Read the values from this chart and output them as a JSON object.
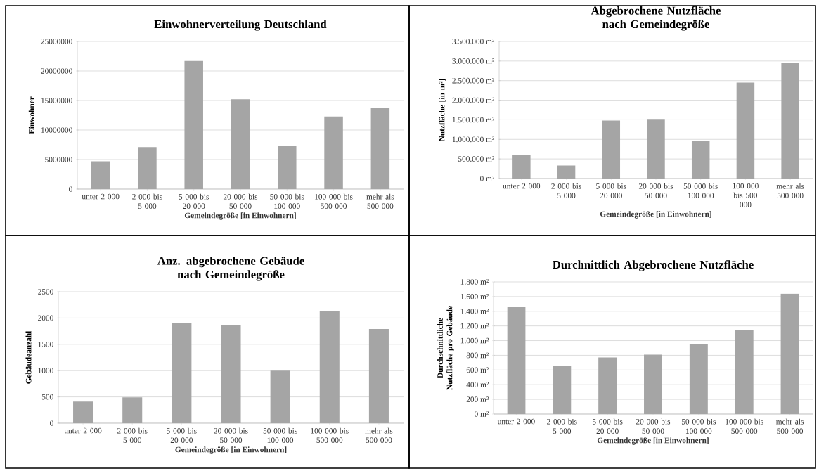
{
  "chart_data": [
    {
      "type": "bar",
      "title": "Einwohnerverteilung Deutschland",
      "xlabel": "Gemeindegröße [in Einwohnern]",
      "ylabel": "Einwohner",
      "categories": [
        "unter 2 000",
        "2 000 bis 5 000",
        "5 000 bis 20 000",
        "20 000 bis 50 000",
        "50 000 bis 100 000",
        "100 000 bis 500 000",
        "mehr als 500 000"
      ],
      "values": [
        4700000,
        7100000,
        21700000,
        15200000,
        7300000,
        12300000,
        13700000
      ],
      "color": "#a5a5a5",
      "ylim": [
        0,
        25000000
      ],
      "yticks": [
        0,
        5000000,
        10000000,
        15000000,
        20000000,
        25000000
      ],
      "grid": "y"
    },
    {
      "type": "bar",
      "title": "Abgebrochene Nutzfläche nach Gemeindegröße",
      "xlabel": "Gemeindegröße [in Einwohnern]",
      "ylabel": "Nutzfläche [in m²]",
      "categories": [
        "unter 2 000",
        "2 000 bis 5 000",
        "5 000 bis 20 000",
        "20 000 bis 50 000",
        "50 000 bis 100 000",
        "100 000 bis 500 000",
        "mehr als 500 000"
      ],
      "values": [
        600000,
        330000,
        1480000,
        1520000,
        950000,
        2450000,
        2950000
      ],
      "color": "#a5a5a5",
      "ylim": [
        0,
        3500000
      ],
      "yticks": [
        {
          "value": 0,
          "label": "0 m²"
        },
        {
          "value": 500000,
          "label": "500.000 m²"
        },
        {
          "value": 1000000,
          "label": "1.000.000 m²"
        },
        {
          "value": 1500000,
          "label": "1.500.000 m²"
        },
        {
          "value": 2000000,
          "label": "2.000.000 m²"
        },
        {
          "value": 2500000,
          "label": "2.500.000 m²"
        },
        {
          "value": 3000000,
          "label": "3.000.000 m²"
        },
        {
          "value": 3500000,
          "label": "3.500.000 m²"
        }
      ],
      "grid": "y"
    },
    {
      "type": "bar",
      "title": "Anz. abgebrochene Gebäude nach Gemeindegröße",
      "xlabel": "Gemeindegröße [in Einwohnern]",
      "ylabel": "Gebäudeanzahl",
      "categories": [
        "unter 2 000",
        "2 000 bis 5 000",
        "5 000 bis 20 000",
        "20 000 bis 50 000",
        "50 000 bis 100 000",
        "100 000 bis 500 000",
        "mehr als 500 000"
      ],
      "values": [
        410,
        490,
        1900,
        1870,
        1000,
        2130,
        1790
      ],
      "color": "#a5a5a5",
      "ylim": [
        0,
        2500
      ],
      "yticks": [
        0,
        500,
        1000,
        1500,
        2000,
        2500
      ],
      "grid": "y"
    },
    {
      "type": "bar",
      "title": "Durchnittlich Abgebrochene Nutzfläche",
      "xlabel": "Gemeindegröße [in Einwohnern]",
      "ylabel": "Durchschnittliche Nutzfläche pro Gebäude",
      "categories": [
        "unter 2 000",
        "2 000 bis 5 000",
        "5 000 bis 20 000",
        "20 000 bis 50 000",
        "50 000 bis 100 000",
        "100 000 bis 500 000",
        "mehr als 500 000"
      ],
      "values": [
        1460,
        650,
        770,
        810,
        950,
        1140,
        1640
      ],
      "color": "#a5a5a5",
      "ylim": [
        0,
        1800
      ],
      "yticks": [
        {
          "value": 0,
          "label": "0 m²"
        },
        {
          "value": 200,
          "label": "200 m²"
        },
        {
          "value": 400,
          "label": "400 m²"
        },
        {
          "value": 600,
          "label": "600 m²"
        },
        {
          "value": 800,
          "label": "800 m²"
        },
        {
          "value": 1000,
          "label": "1.000 m²"
        },
        {
          "value": 1200,
          "label": "1.200 m²"
        },
        {
          "value": 1400,
          "label": "1.400 m²"
        },
        {
          "value": 1600,
          "label": "1.600 m²"
        },
        {
          "value": 1800,
          "label": "1.800 m²"
        }
      ],
      "grid": "y"
    }
  ]
}
